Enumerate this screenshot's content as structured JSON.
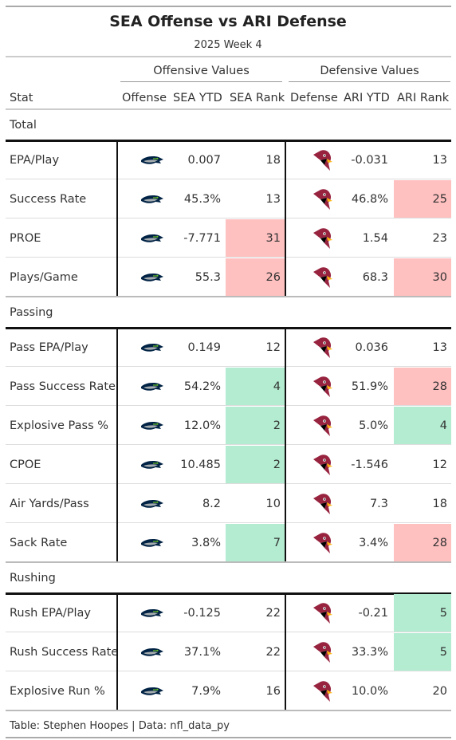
{
  "header": {
    "title": "SEA Offense vs ARI Defense",
    "subtitle": "2025 Week 4"
  },
  "spanners": {
    "offense": "Offensive Values",
    "defense": "Defensive Values"
  },
  "columns": [
    "Stat",
    "Offense",
    "SEA YTD",
    "SEA Rank",
    "Defense",
    "ARI YTD",
    "ARI Rank"
  ],
  "logos": {
    "offense": "seahawks-logo",
    "defense": "cardinals-logo"
  },
  "colors": {
    "bad": "#ffc0c0",
    "good": "#b3ecd1",
    "seahawks_navy": "#002244",
    "seahawks_green": "#69be28",
    "cardinals_red": "#97233f"
  },
  "groups": [
    {
      "label": "Total",
      "rows": [
        {
          "stat": "EPA/Play",
          "sea_ytd": "0.007",
          "sea_rank": "18",
          "sea_hl": "",
          "ari_ytd": "-0.031",
          "ari_rank": "13",
          "ari_hl": ""
        },
        {
          "stat": "Success Rate",
          "sea_ytd": "45.3%",
          "sea_rank": "13",
          "sea_hl": "",
          "ari_ytd": "46.8%",
          "ari_rank": "25",
          "ari_hl": "bad"
        },
        {
          "stat": "PROE",
          "sea_ytd": "-7.771",
          "sea_rank": "31",
          "sea_hl": "bad",
          "ari_ytd": "1.54",
          "ari_rank": "23",
          "ari_hl": ""
        },
        {
          "stat": "Plays/Game",
          "sea_ytd": "55.3",
          "sea_rank": "26",
          "sea_hl": "bad",
          "ari_ytd": "68.3",
          "ari_rank": "30",
          "ari_hl": "bad"
        }
      ]
    },
    {
      "label": "Passing",
      "rows": [
        {
          "stat": "Pass EPA/Play",
          "sea_ytd": "0.149",
          "sea_rank": "12",
          "sea_hl": "",
          "ari_ytd": "0.036",
          "ari_rank": "13",
          "ari_hl": ""
        },
        {
          "stat": "Pass Success Rate",
          "sea_ytd": "54.2%",
          "sea_rank": "4",
          "sea_hl": "good",
          "ari_ytd": "51.9%",
          "ari_rank": "28",
          "ari_hl": "bad"
        },
        {
          "stat": "Explosive Pass %",
          "sea_ytd": "12.0%",
          "sea_rank": "2",
          "sea_hl": "good",
          "ari_ytd": "5.0%",
          "ari_rank": "4",
          "ari_hl": "good"
        },
        {
          "stat": "CPOE",
          "sea_ytd": "10.485",
          "sea_rank": "2",
          "sea_hl": "good",
          "ari_ytd": "-1.546",
          "ari_rank": "12",
          "ari_hl": ""
        },
        {
          "stat": "Air Yards/Pass",
          "sea_ytd": "8.2",
          "sea_rank": "10",
          "sea_hl": "",
          "ari_ytd": "7.3",
          "ari_rank": "18",
          "ari_hl": ""
        },
        {
          "stat": "Sack Rate",
          "sea_ytd": "3.8%",
          "sea_rank": "7",
          "sea_hl": "good",
          "ari_ytd": "3.4%",
          "ari_rank": "28",
          "ari_hl": "bad"
        }
      ]
    },
    {
      "label": "Rushing",
      "rows": [
        {
          "stat": "Rush EPA/Play",
          "sea_ytd": "-0.125",
          "sea_rank": "22",
          "sea_hl": "",
          "ari_ytd": "-0.21",
          "ari_rank": "5",
          "ari_hl": "good"
        },
        {
          "stat": "Rush Success Rate",
          "sea_ytd": "37.1%",
          "sea_rank": "22",
          "sea_hl": "",
          "ari_ytd": "33.3%",
          "ari_rank": "5",
          "ari_hl": "good"
        },
        {
          "stat": "Explosive Run %",
          "sea_ytd": "7.9%",
          "sea_rank": "16",
          "sea_hl": "",
          "ari_ytd": "10.0%",
          "ari_rank": "20",
          "ari_hl": ""
        }
      ]
    }
  ],
  "footer": "Table: Stephen Hoopes | Data: nfl_data_py"
}
